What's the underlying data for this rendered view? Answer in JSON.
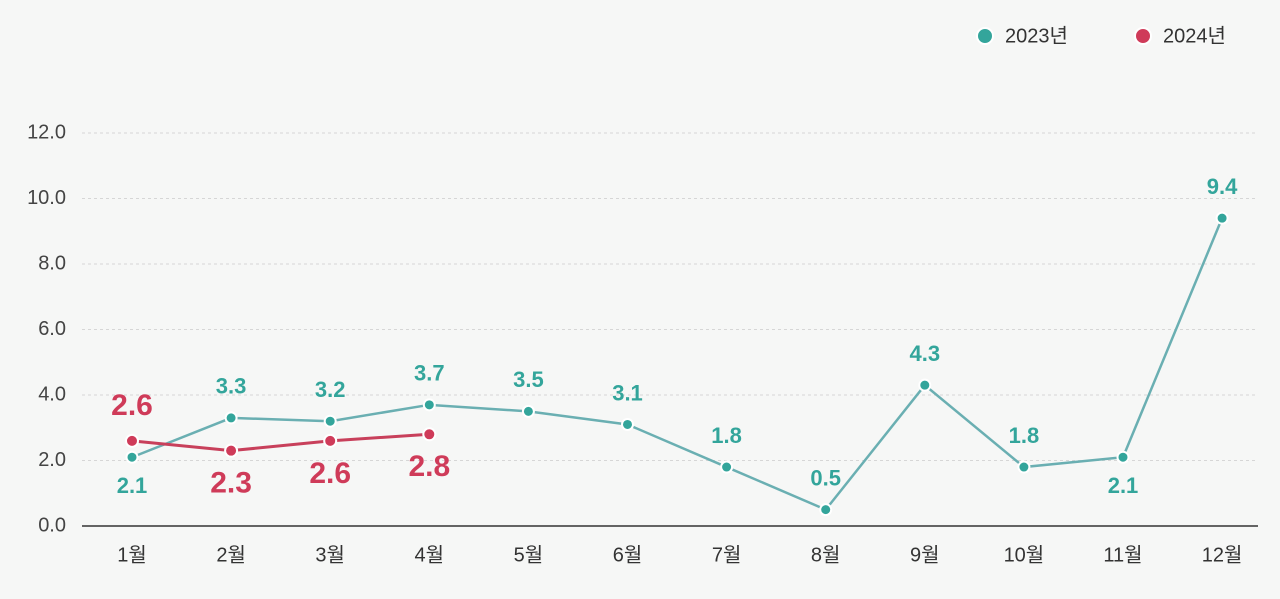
{
  "chart_data": {
    "type": "line",
    "categories": [
      "1월",
      "2월",
      "3월",
      "4월",
      "5월",
      "6월",
      "7월",
      "8월",
      "9월",
      "10월",
      "11월",
      "12월"
    ],
    "series": [
      {
        "name": "2023년",
        "color": "#33a59b",
        "line_color": "#6aafb2",
        "values": [
          2.1,
          3.3,
          3.2,
          3.7,
          3.5,
          3.1,
          1.8,
          0.5,
          4.3,
          1.8,
          2.1,
          9.4
        ]
      },
      {
        "name": "2024년",
        "color": "#cf3b59",
        "line_color": "#c8405b",
        "values": [
          2.6,
          2.3,
          2.6,
          2.8,
          null,
          null,
          null,
          null,
          null,
          null,
          null,
          null
        ]
      }
    ],
    "ylim": [
      0,
      12
    ],
    "yticks": [
      {
        "value": 0,
        "label": "0.0"
      },
      {
        "value": 2,
        "label": "2.0"
      },
      {
        "value": 4,
        "label": "4.0"
      },
      {
        "value": 6,
        "label": "6.0"
      },
      {
        "value": 8,
        "label": "8.0"
      },
      {
        "value": 10,
        "label": "10.0"
      },
      {
        "value": 12,
        "label": "12.0"
      }
    ],
    "grid": true,
    "legend": "top-right"
  }
}
